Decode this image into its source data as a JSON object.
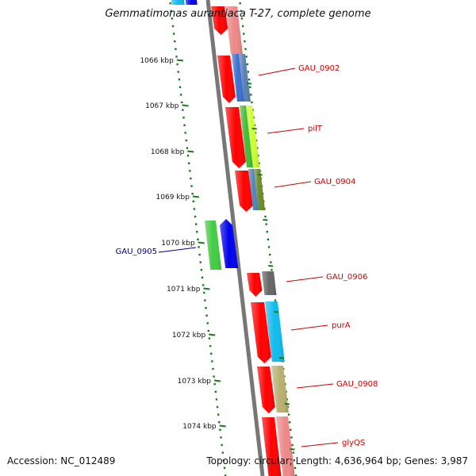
{
  "title": "Gemmatimonas aurantiaca T-27, complete genome",
  "footer": {
    "accession": "Accession: NC_012489",
    "summary": "Topology: circular; Length: 4,636,964 bp; Genes: 3,987"
  },
  "colors": {
    "backbone": "#777777",
    "tick": "#1a7a1a",
    "forward_label": "#cc0000",
    "reverse_label": "#00008b"
  },
  "ticks": [
    {
      "label": "1066 kbp"
    },
    {
      "label": "1067 kbp"
    },
    {
      "label": "1068 kbp"
    },
    {
      "label": "1069 kbp"
    },
    {
      "label": "1070 kbp"
    },
    {
      "label": "1071 kbp"
    },
    {
      "label": "1072 kbp"
    },
    {
      "label": "1073 kbp"
    },
    {
      "label": "1074 kbp"
    }
  ],
  "genes": [
    {
      "label": "GAU_0902",
      "strand": "forward",
      "cog_color": "#3a6fd0",
      "cog_color2": "#5a7fb0"
    },
    {
      "label": "pilT",
      "strand": "forward",
      "cog_color": "#44bb33",
      "cog_color2": "#ccff33"
    },
    {
      "label": "GAU_0904",
      "strand": "forward",
      "cog_color": "#4f86b8",
      "cog_color2": "#6e8a2a"
    },
    {
      "label": "GAU_0905",
      "strand": "reverse",
      "cog_color": "#0000ee",
      "cog_color2": "#44cc44"
    },
    {
      "label": "GAU_0906",
      "strand": "forward",
      "cog_color": "#666666",
      "cog_color2": "#666666"
    },
    {
      "label": "purA",
      "strand": "forward",
      "cog_color": "#11bbee",
      "cog_color2": "#11bbee"
    },
    {
      "label": "GAU_0908",
      "strand": "forward",
      "cog_color": "#b8b070",
      "cog_color2": "#b8b070"
    },
    {
      "label": "glyQS",
      "strand": "forward",
      "cog_color": "#ee8888",
      "cog_color2": "#ee8888"
    }
  ]
}
